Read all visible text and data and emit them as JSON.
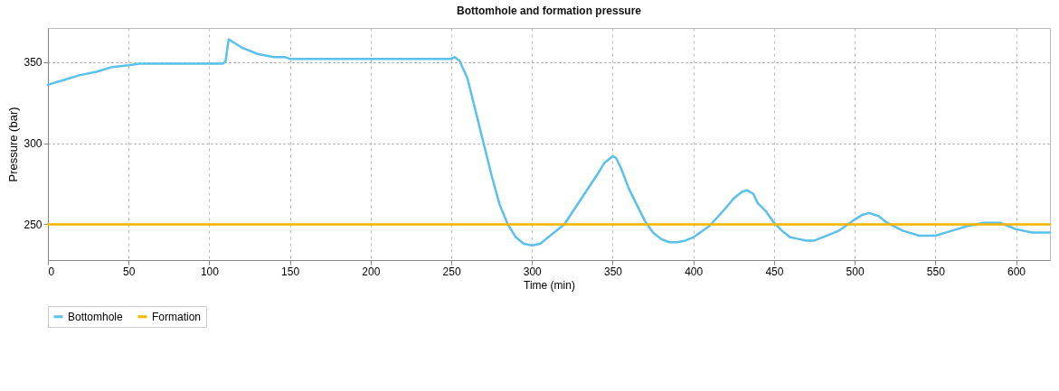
{
  "chart_data": {
    "type": "line",
    "title": "Bottomhole and formation pressure",
    "xlabel": "Time (min)",
    "ylabel": "Pressure (bar)",
    "xlim": [
      0,
      621
    ],
    "xticks": [
      0,
      50,
      100,
      150,
      200,
      250,
      300,
      350,
      400,
      450,
      500,
      550,
      600
    ],
    "ylim": [
      228,
      371
    ],
    "yticks": [
      250,
      300,
      350
    ],
    "grid": true,
    "legend": "bottom",
    "line_style": "solid",
    "marker": "none",
    "series": [
      {
        "name": "Bottomhole",
        "color": "#5bc0eb",
        "x": [
          0,
          10,
          20,
          30,
          40,
          50,
          57,
          108,
          110,
          112,
          120,
          130,
          140,
          147,
          150,
          250,
          252,
          255,
          260,
          265,
          270,
          275,
          280,
          285,
          290,
          295,
          300,
          305,
          310,
          320,
          330,
          340,
          345,
          350,
          352,
          355,
          360,
          365,
          370,
          375,
          380,
          385,
          390,
          395,
          400,
          410,
          420,
          425,
          430,
          433,
          437,
          440,
          445,
          450,
          455,
          460,
          465,
          470,
          475,
          480,
          490,
          500,
          505,
          509,
          515,
          520,
          530,
          540,
          550,
          560,
          570,
          580,
          590,
          595,
          600,
          610,
          621
        ],
        "values": [
          336,
          339,
          342,
          344,
          347,
          348,
          349,
          349,
          350,
          364,
          359,
          355,
          353,
          353,
          352,
          352,
          353,
          351,
          340,
          320,
          300,
          280,
          262,
          250,
          242,
          238,
          237,
          238,
          242,
          250,
          265,
          280,
          288,
          292,
          291,
          285,
          272,
          262,
          252,
          245,
          241,
          239,
          239,
          240,
          242,
          249,
          260,
          266,
          270,
          271,
          269,
          263,
          258,
          251,
          246,
          242,
          241,
          240,
          240,
          242,
          246,
          253,
          256,
          257,
          255,
          251,
          246,
          243,
          243,
          246,
          249,
          251,
          251,
          249,
          247,
          245,
          245
        ]
      },
      {
        "name": "Formation",
        "color": "#f5b400",
        "x": [
          0,
          621
        ],
        "values": [
          250,
          250
        ]
      }
    ]
  }
}
